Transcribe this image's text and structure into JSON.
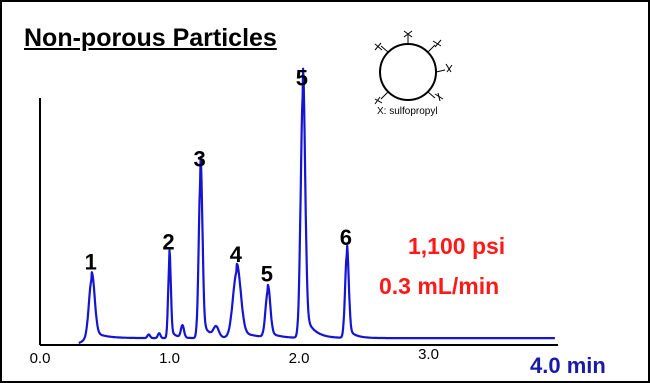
{
  "title": "Non-porous Particles",
  "conditions": {
    "pressure": "1,100 psi",
    "flow_rate": "0.3 mL/min",
    "color": "#ff1a1a"
  },
  "particle_icon": {
    "icon": "particle-circle-icon",
    "caption": "X: sulfopropyl"
  },
  "chart_data": {
    "type": "line",
    "title": "Non-porous Particles",
    "xlabel": "",
    "ylabel": "",
    "xlim": [
      0,
      4.0
    ],
    "ylim": [
      0,
      1
    ],
    "grid": false,
    "x_ticks": [
      "0.0",
      "1.0",
      "2.0",
      "3.0"
    ],
    "x_end_label": "4.0 min",
    "line_color": "#1414d2",
    "axis_label_color": "#1a1aa8",
    "baseline": 0.02,
    "peaks": [
      {
        "label": "1",
        "x": 0.4,
        "height": 0.24
      },
      {
        "label": "2",
        "x": 1.0,
        "height": 0.32
      },
      {
        "label": "3",
        "x": 1.24,
        "height": 0.66
      },
      {
        "label": "4",
        "x": 1.52,
        "height": 0.27
      },
      {
        "label": "5",
        "x": 1.76,
        "height": 0.19
      },
      {
        "label": "5",
        "x": 2.03,
        "height": 0.99
      },
      {
        "label": "6",
        "x": 2.37,
        "height": 0.34
      }
    ]
  }
}
